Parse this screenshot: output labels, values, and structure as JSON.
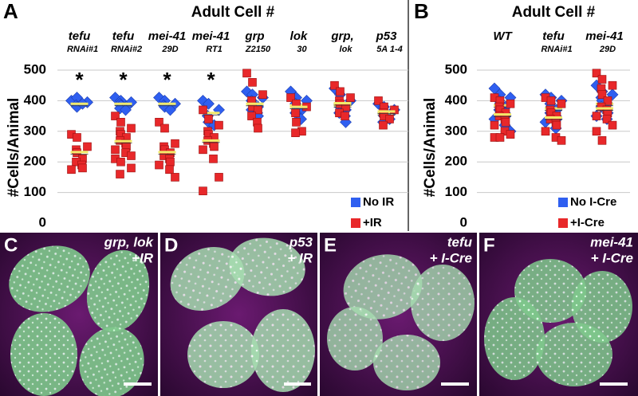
{
  "chart_data": [
    {
      "type": "strip",
      "panel": "A",
      "title": "Adult Cell #",
      "y_label": "#Cells/Animal",
      "categories": [
        [
          "tefu",
          "RNAi#1"
        ],
        [
          "tefu",
          "RNAi#2"
        ],
        [
          "mei-41",
          "29D"
        ],
        [
          "mei-41",
          "RT1"
        ],
        [
          "grp",
          "Z2150"
        ],
        [
          "lok",
          "30"
        ],
        [
          "grp,",
          "lok"
        ],
        [
          "p53",
          "5A 1-4"
        ]
      ],
      "significance": [
        "*",
        "*",
        "*",
        "*",
        null,
        null,
        null,
        null
      ],
      "ylim": [
        0,
        500
      ],
      "yticks": [
        0,
        100,
        200,
        300,
        400,
        500
      ],
      "grid": true,
      "legend": "bottom-right",
      "mean_color": "#f2ea6a",
      "series": [
        {
          "name": "No IR",
          "color": "#2f5ff0",
          "marker": "diamond",
          "values": [
            [
              400,
              410,
              395,
              385,
              380,
              390
            ],
            [
              410,
              400,
              395,
              390,
              385,
              380,
              375,
              370
            ],
            [
              410,
              400,
              390,
              385,
              380,
              370
            ],
            [
              400,
              390,
              370,
              350,
              330,
              320
            ],
            [
              430,
              420,
              410,
              400,
              390,
              380,
              370,
              360,
              350
            ],
            [
              430,
              410,
              400,
              390,
              380,
              370,
              360,
              340
            ],
            [
              440,
              420,
              400,
              390,
              380,
              370,
              360,
              350,
              330
            ],
            [
              390,
              380,
              370,
              360,
              350,
              340,
              330
            ]
          ],
          "means": [
            390,
            390,
            390,
            360,
            390,
            385,
            385,
            360
          ]
        },
        {
          "name": "+IR",
          "color": "#e8282a",
          "marker": "square",
          "values": [
            [
              290,
              280,
              250,
              240,
              230,
              210,
              200,
              190,
              180,
              175
            ],
            [
              350,
              330,
              310,
              300,
              290,
              280,
              270,
              260,
              250,
              240,
              230,
              220,
              210,
              200,
              180,
              160
            ],
            [
              330,
              310,
              260,
              250,
              240,
              230,
              220,
              210,
              200,
              190,
              175,
              150
            ],
            [
              370,
              340,
              320,
              300,
              290,
              280,
              270,
              260,
              250,
              240,
              210,
              150,
              105
            ],
            [
              490,
              460,
              420,
              400,
              380,
              370,
              350,
              330,
              310
            ],
            [
              410,
              390,
              380,
              360,
              330,
              300,
              295
            ],
            [
              450,
              430,
              410,
              400,
              390,
              380,
              360,
              350
            ],
            [
              400,
              380,
              370,
              360,
              350,
              340,
              320
            ]
          ],
          "means": [
            232,
            268,
            232,
            270,
            390,
            380,
            392,
            365
          ]
        }
      ]
    },
    {
      "type": "strip",
      "panel": "B",
      "title": "Adult Cell #",
      "y_label": "#Cells/Animal",
      "categories": [
        [
          "WT",
          null
        ],
        [
          "tefu",
          "RNAi#1"
        ],
        [
          "mei-41",
          "29D"
        ]
      ],
      "ylim": [
        0,
        500
      ],
      "yticks": [
        0,
        100,
        200,
        300,
        400,
        500
      ],
      "grid": true,
      "legend": "bottom-right",
      "mean_color": "#f2ea6a",
      "series": [
        {
          "name": "No I-Cre",
          "color": "#2f5ff0",
          "marker": "diamond",
          "values": [
            [
              440,
              420,
              410,
              400,
              390,
              380,
              370,
              360,
              350,
              340,
              320,
              300
            ],
            [
              420,
              410,
              400,
              390,
              380,
              370,
              360,
              350,
              340,
              330,
              310
            ],
            [
              450,
              430,
              420,
              410,
              400,
              390,
              380,
              370,
              360,
              350,
              340
            ]
          ],
          "means": [
            385,
            375,
            390
          ]
        },
        {
          "name": "+I-Cre",
          "color": "#e8282a",
          "marker": "square",
          "values": [
            [
              410,
              400,
              390,
              380,
              370,
              360,
              350,
              340,
              330,
              320,
              300,
              290,
              280,
              280
            ],
            [
              410,
              400,
              390,
              370,
              360,
              350,
              340,
              330,
              320,
              300,
              280,
              270
            ],
            [
              490,
              470,
              450,
              440,
              420,
              400,
              380,
              370,
              360,
              350,
              340,
              320,
              300,
              270
            ]
          ],
          "means": [
            355,
            345,
            375
          ]
        }
      ]
    }
  ],
  "panels": [
    {
      "letter": "C",
      "caption": [
        "grp, lok",
        "+IR"
      ]
    },
    {
      "letter": "D",
      "caption": [
        "p53",
        "+ IR"
      ]
    },
    {
      "letter": "E",
      "caption": [
        "tefu",
        "+ I-Cre"
      ]
    },
    {
      "letter": "F",
      "caption": [
        "mei-41",
        "+ I-Cre"
      ]
    }
  ]
}
